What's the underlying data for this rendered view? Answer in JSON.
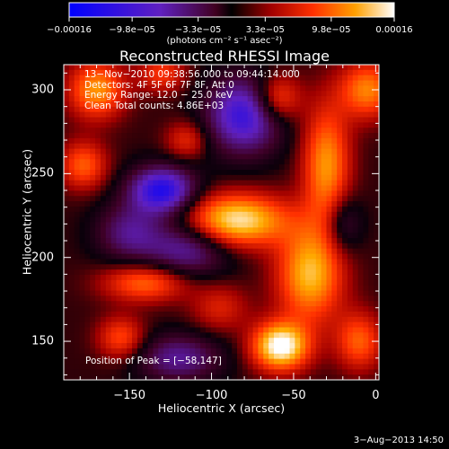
{
  "chart_data": {
    "type": "heatmap",
    "title": "Reconstructed RHESSI Image",
    "xlabel": "Heliocentric X (arcsec)",
    "ylabel": "Heliocentric Y (arcsec)",
    "xlim": [
      -190,
      2
    ],
    "ylim": [
      127,
      315
    ],
    "x_ticks": [
      "−150",
      "−100",
      "−50",
      "0"
    ],
    "x_tick_values": [
      -150,
      -100,
      -50,
      0
    ],
    "y_ticks": [
      "150",
      "200",
      "250",
      "300"
    ],
    "y_tick_values": [
      150,
      200,
      250,
      300
    ],
    "colorbar": {
      "ticks": [
        "−0.00016",
        "−9.8e−05",
        "−3.3e−05",
        "3.3e−05",
        "9.8e−05",
        "0.00016"
      ],
      "tick_values": [
        -0.00016,
        -9.8e-05,
        -3.3e-05,
        3.3e-05,
        9.8e-05,
        0.00016
      ],
      "range": [
        -0.00016,
        0.00016
      ],
      "units": "(photons cm⁻² s⁻¹ asec⁻²)",
      "colors": [
        "#0000ff",
        "#6020c0",
        "#400020",
        "#000000",
        "#a00000",
        "#ff3000",
        "#ffa000",
        "#ffffff"
      ]
    },
    "annotations": [
      "13−Nov−2010 09:38:56.000 to 09:44:14.000",
      "Detectors: 4F 5F 6F 7F 8F, Att 0",
      "Energy Range: 12.0 − 25.0 keV",
      "Clean     Total counts: 4.86E+03"
    ],
    "peak_label": "Position of Peak = [−58,147]",
    "peak": [
      -58,
      147
    ],
    "sources": [
      {
        "x": -58,
        "y": 147,
        "sx": 12,
        "sy": 10,
        "amp": 1.0
      },
      {
        "x": -85,
        "y": 222,
        "sx": 22,
        "sy": 11,
        "amp": 0.9
      },
      {
        "x": -40,
        "y": 190,
        "sx": 14,
        "sy": 20,
        "amp": 0.75
      },
      {
        "x": -30,
        "y": 255,
        "sx": 10,
        "sy": 25,
        "amp": 0.65
      },
      {
        "x": -5,
        "y": 300,
        "sx": 12,
        "sy": 12,
        "amp": 0.6
      },
      {
        "x": -60,
        "y": 295,
        "sx": 10,
        "sy": 10,
        "amp": 0.55
      },
      {
        "x": -170,
        "y": 300,
        "sx": 12,
        "sy": 12,
        "amp": 0.65
      },
      {
        "x": -178,
        "y": 255,
        "sx": 10,
        "sy": 10,
        "amp": 0.5
      },
      {
        "x": -140,
        "y": 185,
        "sx": 18,
        "sy": 8,
        "amp": 0.55
      },
      {
        "x": -155,
        "y": 152,
        "sx": 10,
        "sy": 9,
        "amp": 0.45
      },
      {
        "x": -10,
        "y": 150,
        "sx": 10,
        "sy": 12,
        "amp": 0.5
      },
      {
        "x": -115,
        "y": 270,
        "sx": 9,
        "sy": 8,
        "amp": 0.35
      },
      {
        "x": -130,
        "y": 310,
        "sx": 10,
        "sy": 8,
        "amp": 0.4
      },
      {
        "x": -95,
        "y": 170,
        "sx": 12,
        "sy": 10,
        "amp": 0.3
      },
      {
        "x": -130,
        "y": 240,
        "sx": 14,
        "sy": 10,
        "amp": -0.9
      },
      {
        "x": -80,
        "y": 285,
        "sx": 16,
        "sy": 16,
        "amp": -0.8
      },
      {
        "x": -115,
        "y": 205,
        "sx": 18,
        "sy": 12,
        "amp": -0.55
      },
      {
        "x": -150,
        "y": 215,
        "sx": 14,
        "sy": 12,
        "amp": -0.45
      },
      {
        "x": -120,
        "y": 140,
        "sx": 18,
        "sy": 10,
        "amp": -0.5
      },
      {
        "x": -20,
        "y": 220,
        "sx": 8,
        "sy": 12,
        "amp": -0.35
      }
    ]
  },
  "footer": {
    "date_stamp": "3−Aug−2013 14:50"
  }
}
